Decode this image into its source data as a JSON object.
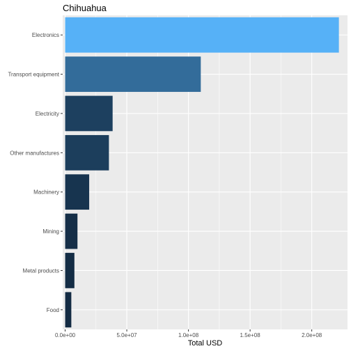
{
  "chart_data": {
    "type": "bar",
    "orientation": "horizontal",
    "title": "Chihuahua",
    "xlabel": "Total USD",
    "ylabel": "",
    "categories": [
      "Electronics",
      "Transport equipment",
      "Electricity",
      "Other manufactures",
      "Machinery",
      "Mining",
      "Metal products",
      "Food"
    ],
    "values": [
      222000000,
      110000000,
      38500000,
      35500000,
      19500000,
      10000000,
      7500000,
      5000000
    ],
    "xlim": [
      -2000000,
      229000000
    ],
    "x_ticks": [
      0,
      50000000,
      100000000,
      150000000,
      200000000
    ],
    "x_tick_labels": [
      "0.0e+00",
      "5.0e+07",
      "1.0e+08",
      "1.5e+08",
      "2.0e+08"
    ],
    "grid": true,
    "legend": "none",
    "colors": {
      "panel_bg": "#ebebeb",
      "grid_major": "#ffffff",
      "bar_low": "#132b43",
      "bar_high": "#56b1f7"
    }
  }
}
